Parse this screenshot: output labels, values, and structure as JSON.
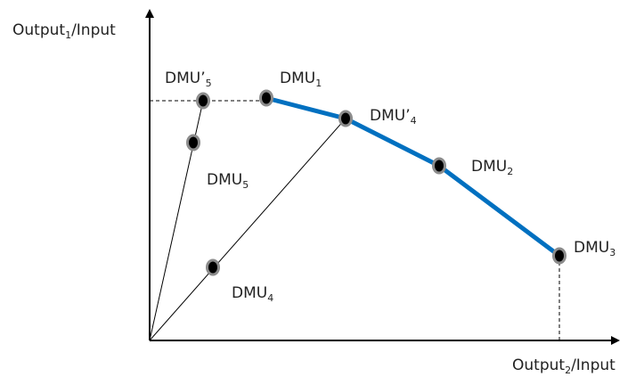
{
  "axes": {
    "y_label": {
      "main": "Output",
      "sub": "1",
      "tail": "/Input"
    },
    "x_label": {
      "main": "Output",
      "sub": "2",
      "tail": "/Input"
    }
  },
  "points": {
    "dmu1": {
      "main": "DMU",
      "prime": "",
      "sub": "1"
    },
    "dmu2": {
      "main": "DMU",
      "prime": "",
      "sub": "2"
    },
    "dmu3": {
      "main": "DMU",
      "prime": "",
      "sub": "3"
    },
    "dmu4": {
      "main": "DMU",
      "prime": "",
      "sub": "4"
    },
    "dmu5": {
      "main": "DMU",
      "prime": "",
      "sub": "5"
    },
    "dmu4_prime": {
      "main": "DMU",
      "prime": "’",
      "sub": "4"
    },
    "dmu5_prime": {
      "main": "DMU",
      "prime": "’",
      "sub": "5"
    }
  },
  "colors": {
    "frontier": "#0070c0",
    "axis": "#000000",
    "ray": "#000000",
    "point_fill": "#000000",
    "point_ring": "#8c8c8c"
  }
}
